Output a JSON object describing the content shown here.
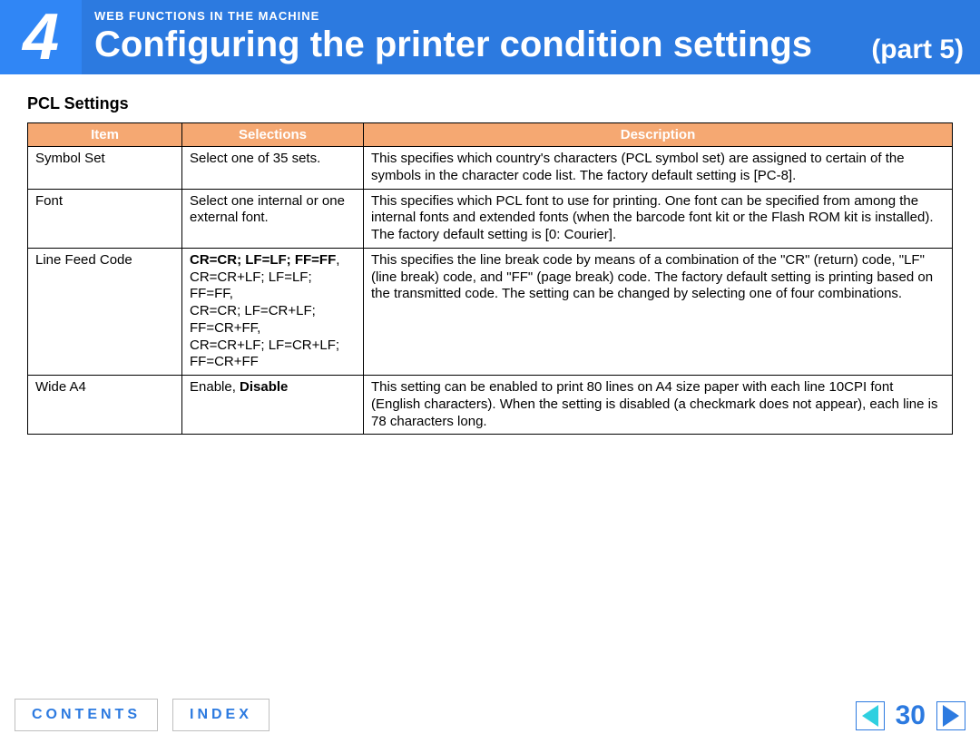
{
  "header": {
    "chapter_number": "4",
    "overline": "WEB FUNCTIONS IN THE MACHINE",
    "title": "Configuring the printer condition settings",
    "part": "(part 5)"
  },
  "section_title": "PCL Settings",
  "table": {
    "columns": [
      "Item",
      "Selections",
      "Description"
    ],
    "rows": [
      {
        "item": "Symbol Set",
        "selections_plain": "Select one of 35 sets.",
        "description": "This specifies which country's characters (PCL symbol set) are assigned to certain of the symbols in the character code list. The factory default setting is [PC-8]."
      },
      {
        "item": "Font",
        "selections_plain": "Select one internal or one external font.",
        "description": "This specifies which PCL font to use for printing. One font can be specified from among the internal fonts and extended fonts (when the barcode font kit or the Flash ROM kit is installed). The factory default setting is [0: Courier]."
      },
      {
        "item": "Line Feed Code",
        "selections_bold": "CR=CR; LF=LF; FF=FF",
        "selections_rest": ",\nCR=CR+LF; LF=LF; FF=FF,\nCR=CR; LF=CR+LF; FF=CR+FF,\nCR=CR+LF; LF=CR+LF; FF=CR+FF",
        "description": "This specifies the line break code by means of a combination of the \"CR\" (return) code, \"LF\" (line break) code, and \"FF\" (page break) code. The factory default setting is printing based on the transmitted code. The setting can be changed by selecting one of four combinations."
      },
      {
        "item": "Wide A4",
        "selections_pre": "Enable, ",
        "selections_bold": "Disable",
        "description": "This setting can be enabled to print 80 lines on A4 size paper with each line 10CPI font (English characters). When the setting is disabled (a checkmark does not appear), each line is 78 characters long."
      }
    ]
  },
  "footer": {
    "contents_label": "CONTENTS",
    "index_label": "INDEX",
    "page_number": "30"
  },
  "colors": {
    "header_bg": "#2c7ae0",
    "chapter_bg": "#3086f5",
    "th_bg": "#f5a872",
    "accent": "#2c7ae0",
    "arrow_prev": "#2fd0e0"
  }
}
